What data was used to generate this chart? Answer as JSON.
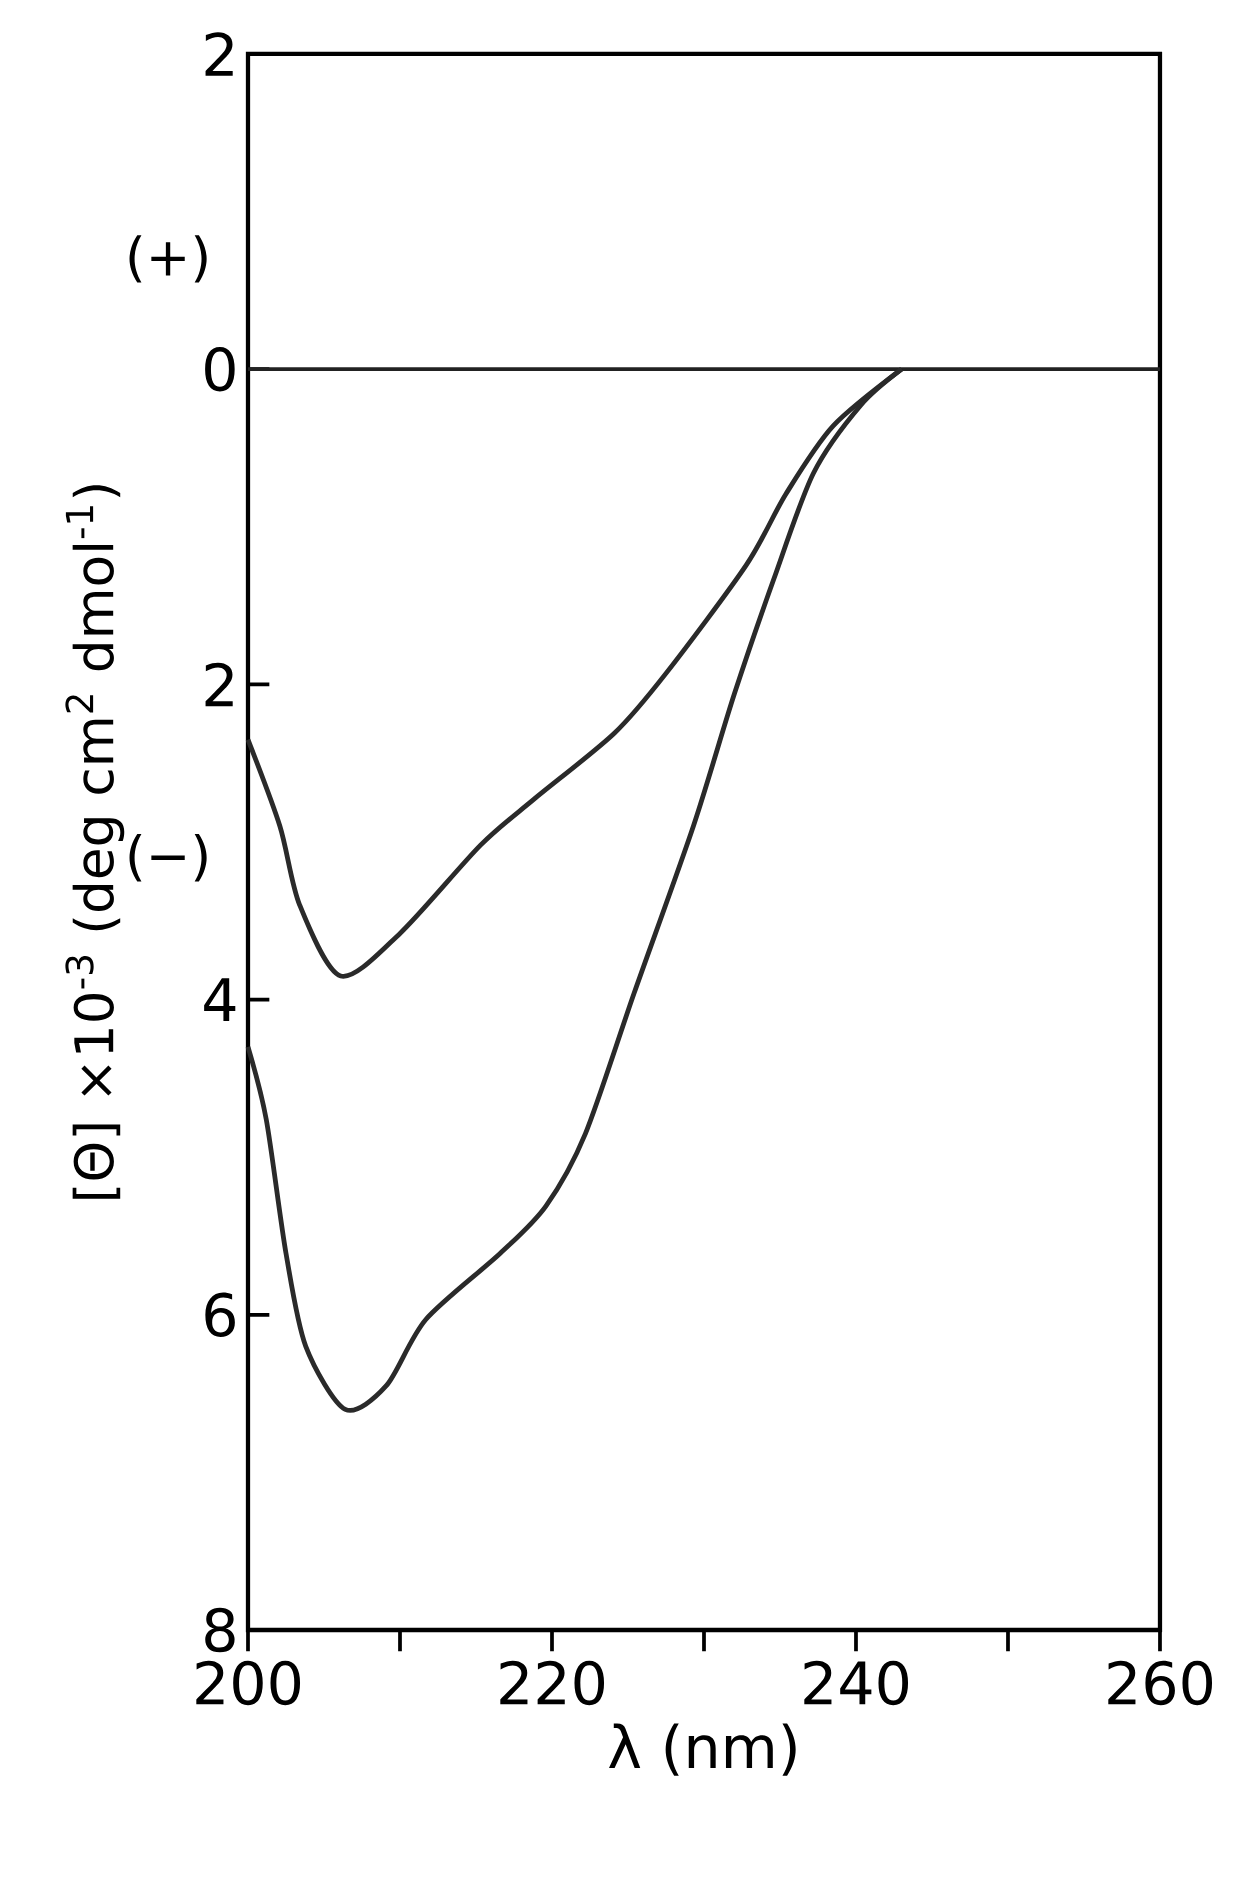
{
  "chart_data": {
    "type": "line",
    "xlabel": "λ (nm)",
    "ylabel": "[Θ] ×10$^{-3}$ (deg cm$^{2}$ dmol$^{-1}$)",
    "annotations": [
      "(+)",
      "(−)"
    ],
    "xlim": [
      200,
      260
    ],
    "xticks": [
      200,
      {
        "value": 210,
        "label": null
      },
      220,
      {
        "value": 230,
        "label": null
      },
      240,
      {
        "value": 250,
        "label": null
      },
      260
    ],
    "ylim": [
      -8,
      2
    ],
    "yticks": [
      {
        "value": -8,
        "label": "8"
      },
      {
        "value": -6,
        "label": "6"
      },
      {
        "value": -4,
        "label": "4"
      },
      {
        "value": -2,
        "label": "2"
      },
      0,
      2
    ],
    "ref_lines": [
      {
        "axis": "y",
        "value": 0,
        "color": "#222222"
      }
    ],
    "series": [
      {
        "color": "#2a2a2a",
        "x": [
          200,
          202.1,
          203.4,
          206.1,
          210,
          215.3,
          218.8,
          224.1,
          227.5,
          232.8,
          235.4,
          238.5,
          243
        ],
        "values": [
          -2.35,
          -2.9,
          -3.4,
          -3.85,
          -3.58,
          -3.02,
          -2.73,
          -2.31,
          -1.93,
          -1.24,
          -0.79,
          -0.36,
          0
        ]
      },
      {
        "color": "#2a2a2a",
        "x": [
          200,
          201.2,
          202.5,
          203.8,
          206.4,
          209.1,
          211.7,
          216.6,
          219.6,
          222.2,
          225.4,
          229.3,
          232,
          234.6,
          237.2,
          240.3,
          243
        ],
        "values": [
          -4.3,
          -4.76,
          -5.61,
          -6.2,
          -6.6,
          -6.45,
          -6.03,
          -5.61,
          -5.31,
          -4.85,
          -3.96,
          -2.9,
          -2.06,
          -1.33,
          -0.66,
          -0.23,
          0
        ]
      }
    ]
  }
}
